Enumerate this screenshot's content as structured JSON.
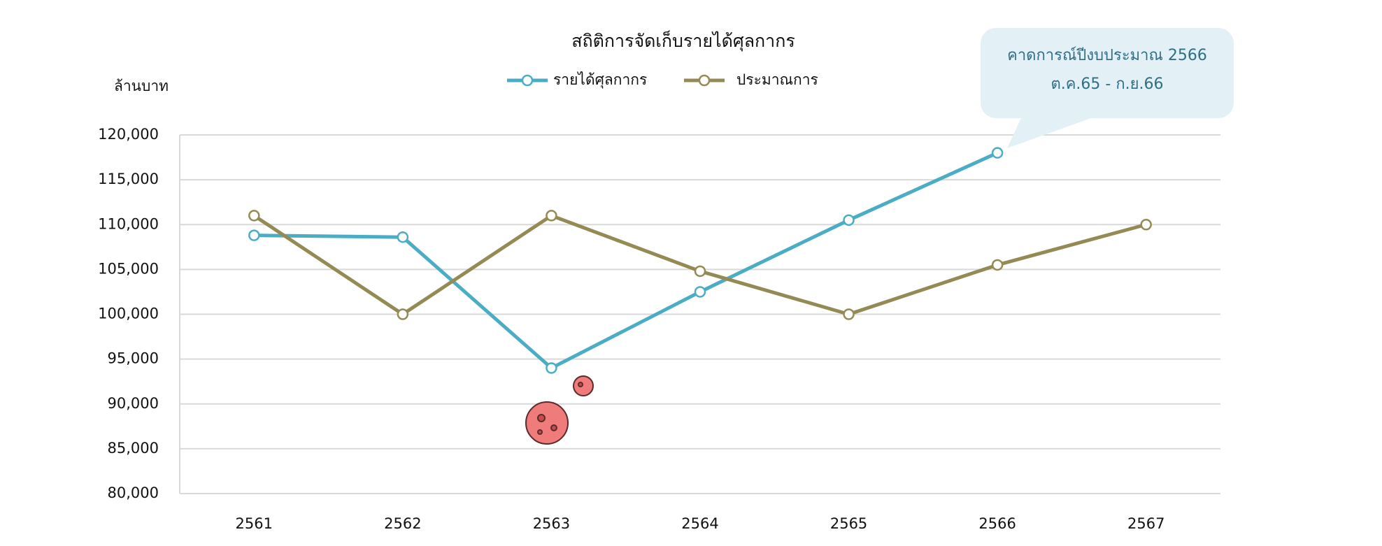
{
  "chart_data": {
    "type": "line",
    "title": "สถิติการจัดเก็บรายได้ศุลกากร",
    "y_label": "ล้านบาท",
    "annotation": [
      "คาดการณ์ปีงบประมาณ 2566",
      "ต.ค.65 - ก.ย.66"
    ],
    "categories": [
      "2561",
      "2562",
      "2563",
      "2564",
      "2565",
      "2566",
      "2567"
    ],
    "series": [
      {
        "name": "รายได้ศุลกากร",
        "color": "#4bacc6",
        "values": [
          108800,
          108600,
          94000,
          102500,
          110500,
          118000,
          null
        ]
      },
      {
        "name": "ประมาณการ",
        "color": "#948a54",
        "values": [
          111000,
          100000,
          111000,
          104800,
          100000,
          105500,
          110000
        ]
      }
    ],
    "ylim": [
      80000,
      120000
    ],
    "yticks": [
      {
        "value": 80000,
        "label": "80,000"
      },
      {
        "value": 85000,
        "label": "85,000"
      },
      {
        "value": 90000,
        "label": "90,000"
      },
      {
        "value": 95000,
        "label": "95,000"
      },
      {
        "value": 100000,
        "label": "100,000"
      },
      {
        "value": 105000,
        "label": "105,000"
      },
      {
        "value": 110000,
        "label": "110,000"
      },
      {
        "value": 115000,
        "label": "115,000"
      },
      {
        "value": 120000,
        "label": "120,000"
      }
    ],
    "grid": true
  }
}
